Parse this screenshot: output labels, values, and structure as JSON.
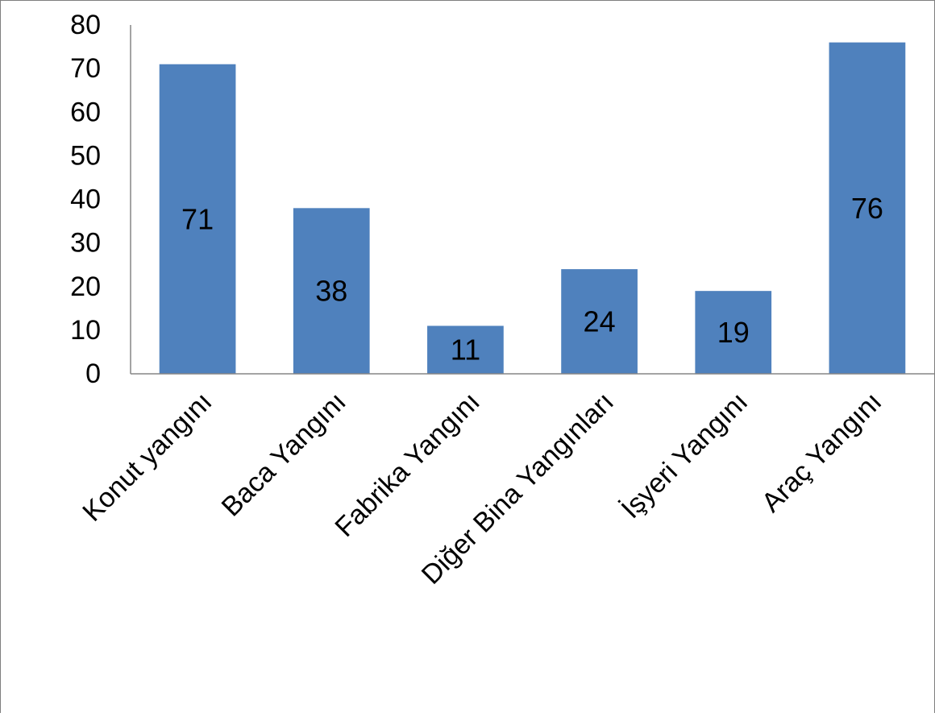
{
  "chart_data": {
    "type": "bar",
    "categories": [
      "Konut yangını",
      "Baca Yangını",
      "Fabrika Yangını",
      "Diğer Bina Yangınları",
      "İşyeri Yangını",
      "Araç Yangını"
    ],
    "values": [
      71,
      38,
      11,
      24,
      19,
      76
    ],
    "data_labels": [
      "71",
      "38",
      "11",
      "24",
      "19",
      "76"
    ],
    "title": "",
    "xlabel": "",
    "ylabel": "",
    "ylim": [
      0,
      80
    ],
    "yticks": [
      "0",
      "10",
      "20",
      "30",
      "40",
      "50",
      "60",
      "70",
      "80"
    ],
    "grid": false,
    "legend": "none",
    "bar_color": "#4f81bd",
    "axis_color": "#868686"
  }
}
